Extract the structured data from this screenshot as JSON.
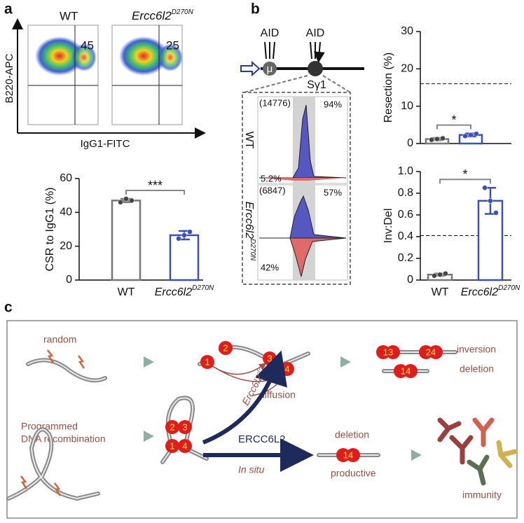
{
  "panel_labels": [
    "a",
    "b",
    "c"
  ],
  "flow": {
    "genotypes": [
      "WT",
      {
        "text": "Ercc6l2",
        "sup": "D270N"
      }
    ],
    "gate_percent": [
      "45",
      "25"
    ],
    "ylabel": "B220-APC",
    "xlabel": "IgG1-FITC"
  },
  "schematic": {
    "aid": [
      "AID",
      "AID"
    ],
    "mu": "μ",
    "region": "Sγ1"
  },
  "histogram": {
    "rows": [
      "WT",
      {
        "text": "Ercc6l2",
        "sup": "D270N"
      }
    ],
    "counts": [
      "(14776)",
      "(6847)"
    ],
    "top_percent": [
      "94%",
      "57%"
    ],
    "bottom_percent": [
      "5.2%",
      "42%"
    ]
  },
  "chart_data": [
    {
      "type": "bar",
      "ylabel": "CSR to IgG1 (%)",
      "categories": [
        "WT",
        {
          "text": "Ercc6l2",
          "sup": "D270N"
        }
      ],
      "values": [
        47,
        26.5
      ],
      "errors": [
        1,
        2.5
      ],
      "points": [
        [
          46,
          48,
          47
        ],
        [
          24.5,
          26.5,
          28.5
        ]
      ],
      "colors": [
        "#777777",
        "#3b4fb5"
      ],
      "ylim": [
        0,
        60
      ],
      "yticks": [
        0,
        20,
        40,
        60
      ],
      "significance": "***"
    },
    {
      "type": "bar",
      "ylabel": "Resection (%)",
      "categories": [
        null,
        null
      ],
      "values": [
        1.2,
        2.3
      ],
      "errors": [
        0.3,
        0.4
      ],
      "points": [
        [
          1.0,
          1.2,
          1.4
        ],
        [
          2.0,
          2.3,
          2.6
        ]
      ],
      "colors": [
        "#777777",
        "#3b4fb5"
      ],
      "ylim": [
        0,
        30
      ],
      "yticks": [
        0,
        10,
        20,
        30
      ],
      "reference_line": 16,
      "significance": "*"
    },
    {
      "type": "bar",
      "ylabel": "Inv:Del",
      "categories": [
        "WT",
        {
          "text": "Ercc6l2",
          "sup": "D270N"
        }
      ],
      "values": [
        0.05,
        0.73
      ],
      "errors": [
        0.01,
        0.12
      ],
      "points": [
        [
          0.04,
          0.05,
          0.06
        ],
        [
          0.85,
          0.73,
          0.62
        ]
      ],
      "colors": [
        "#777777",
        "#3b4fb5"
      ],
      "ylim": [
        0,
        1.0
      ],
      "yticks": [
        0,
        0.2,
        0.4,
        0.6,
        0.8,
        {
          "value": 1.0,
          "label": "1.0"
        }
      ],
      "reference_line": 0.41,
      "significance": "*"
    }
  ],
  "model": {
    "random": "random",
    "programmed": [
      "Programmed",
      "DNA recombination"
    ],
    "ends_top": [
      "1",
      "2",
      "3",
      "4"
    ],
    "inversion_pairs": [
      "13",
      "24"
    ],
    "inversion": "inversion",
    "deletion_pair": "14",
    "deletion": "deletion",
    "diffusion": "diffusion",
    "knockout": {
      "text": "Ercc6l2",
      "sup": "-/-"
    },
    "enzyme": "ERCC6L2",
    "in_situ": "In situ",
    "ends_bottom": [
      "2",
      "3",
      "1",
      "4"
    ],
    "deletion_bottom": "deletion",
    "deletion_pair_bottom": "14",
    "productive": "productive",
    "immunity": "immunity"
  }
}
